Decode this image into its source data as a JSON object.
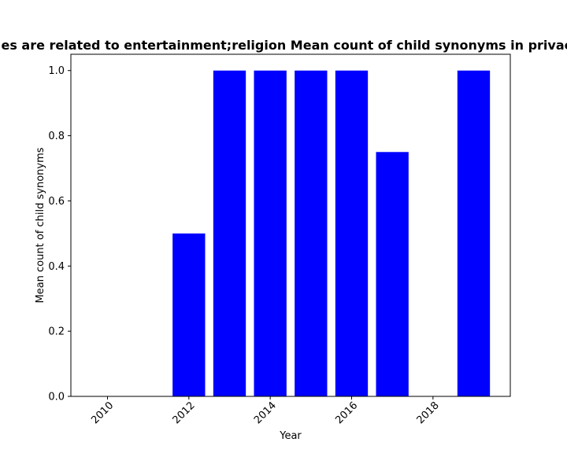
{
  "chart_data": {
    "type": "bar",
    "title": "es are related to entertainment;religion Mean count of child synonyms in privacy",
    "xlabel": "Year",
    "ylabel": "Mean count of child synonyms",
    "x": [
      2012,
      2013,
      2014,
      2015,
      2016,
      2017,
      2019
    ],
    "values": [
      0.5,
      1.0,
      1.0,
      1.0,
      1.0,
      0.75,
      1.0
    ],
    "xlim": [
      2009.1,
      2019.9
    ],
    "ylim": [
      0,
      1.05
    ],
    "xticks": [
      2010,
      2012,
      2014,
      2016,
      2018
    ],
    "xtick_labels": [
      "2010",
      "2012",
      "2014",
      "2016",
      "2018"
    ],
    "yticks": [
      0.0,
      0.2,
      0.4,
      0.6,
      0.8,
      1.0
    ],
    "ytick_labels": [
      "0.0",
      "0.2",
      "0.4",
      "0.6",
      "0.8",
      "1.0"
    ],
    "bar_color": "#0000ff",
    "grid": false
  }
}
